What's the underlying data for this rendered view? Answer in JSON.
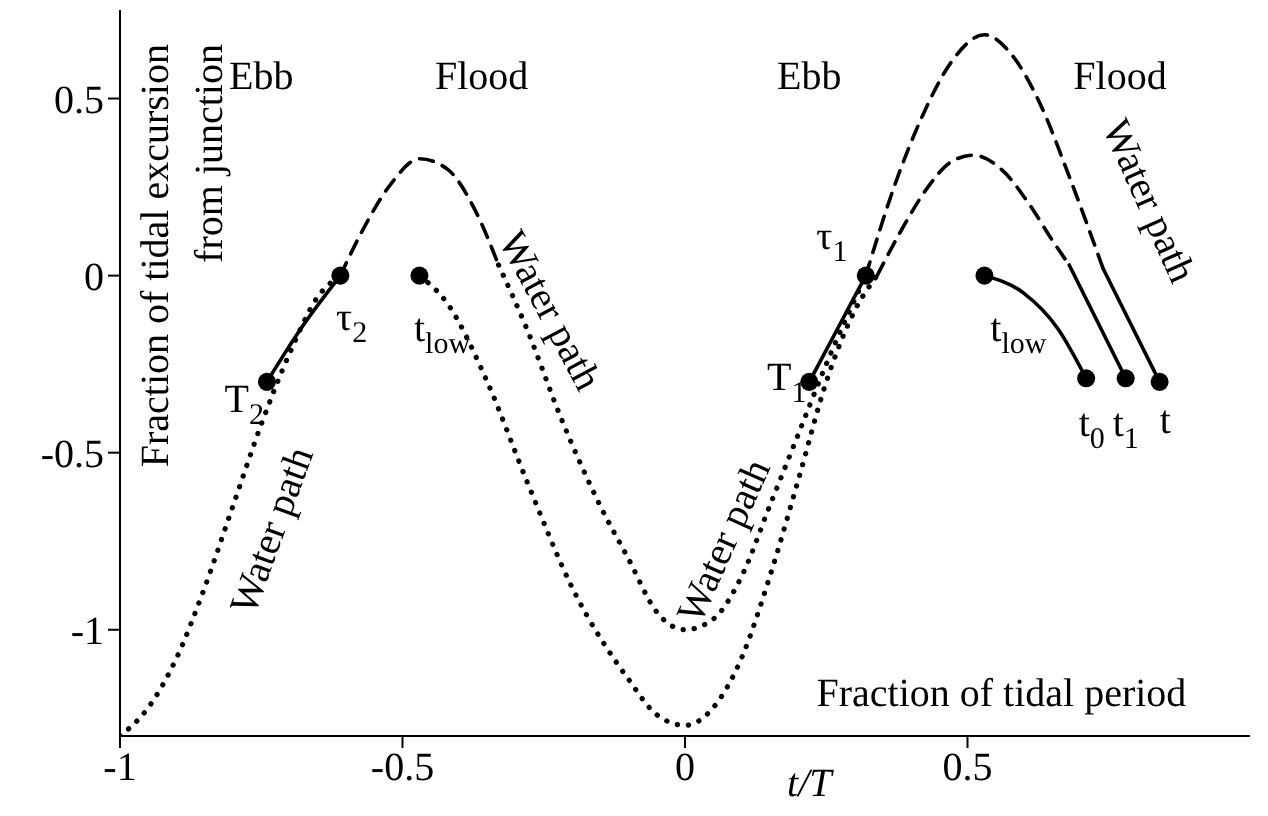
{
  "chart_data": {
    "type": "line",
    "xlabel": "t/T",
    "ylabel": "Fraction of tidal excursion from junction",
    "xlim": [
      -1,
      1
    ],
    "ylim": [
      -1.3,
      0.75
    ],
    "xticks": [
      -1,
      -0.5,
      0,
      0.5
    ],
    "yticks": [
      -1,
      -0.5,
      0,
      0.5
    ],
    "grid": false,
    "legend": false,
    "series": [
      {
        "type": "line",
        "line_style": "dotted",
        "color": "#000000",
        "x": [
          -1,
          -0.95,
          -0.9,
          -0.85,
          -0.8,
          -0.75,
          -0.7,
          -0.65,
          -0.61
        ],
        "values": [
          -1.3,
          -1.22,
          -1.08,
          -0.88,
          -0.65,
          -0.42,
          -0.22,
          -0.06,
          0
        ]
      },
      {
        "type": "line",
        "line_style": "dashed",
        "color": "#000000",
        "x": [
          -0.61,
          -0.57,
          -0.52,
          -0.47,
          -0.42,
          -0.37,
          -0.33
        ],
        "values": [
          0,
          0.13,
          0.26,
          0.33,
          0.3,
          0.18,
          0.03
        ]
      },
      {
        "type": "line",
        "line_style": "dotted",
        "color": "#000000",
        "x": [
          -0.33,
          -0.28,
          -0.22,
          -0.15,
          -0.1,
          -0.05,
          0,
          0.05,
          0.1,
          0.15,
          0.2,
          0.25,
          0.32
        ],
        "values": [
          0.03,
          -0.15,
          -0.4,
          -0.65,
          -0.8,
          -0.95,
          -1,
          -0.97,
          -0.85,
          -0.65,
          -0.45,
          -0.25,
          0
        ]
      },
      {
        "type": "line",
        "line_style": "dashed",
        "color": "#000000",
        "x": [
          0.32,
          0.37,
          0.42,
          0.47,
          0.53,
          0.58,
          0.63,
          0.68,
          0.74
        ],
        "values": [
          0,
          0.25,
          0.45,
          0.6,
          0.68,
          0.62,
          0.48,
          0.28,
          0.02
        ]
      },
      {
        "type": "line",
        "line_style": "dotted",
        "color": "#000000",
        "x": [
          -0.47,
          -0.42,
          -0.35,
          -0.28,
          -0.2,
          -0.1,
          -0.05,
          0,
          0.05,
          0.1,
          0.15,
          0.2,
          0.25,
          0.3,
          0.34
        ],
        "values": [
          0,
          -0.08,
          -0.3,
          -0.58,
          -0.88,
          -1.14,
          -1.24,
          -1.27,
          -1.22,
          -1.08,
          -0.85,
          -0.58,
          -0.3,
          -0.1,
          0
        ]
      },
      {
        "type": "line",
        "line_style": "dashed",
        "color": "#000000",
        "x": [
          0.34,
          0.38,
          0.43,
          0.47,
          0.51,
          0.56,
          0.61,
          0.65,
          0.68
        ],
        "values": [
          0,
          0.12,
          0.25,
          0.32,
          0.34,
          0.3,
          0.2,
          0.1,
          0.03
        ]
      },
      {
        "type": "line",
        "line_style": "solid",
        "color": "#000000",
        "x": [
          -0.74,
          -0.68,
          -0.61
        ],
        "values": [
          -0.3,
          -0.15,
          0
        ]
      },
      {
        "type": "line",
        "line_style": "solid",
        "color": "#000000",
        "x": [
          0.22,
          0.27,
          0.32
        ],
        "values": [
          -0.3,
          -0.15,
          0
        ]
      },
      {
        "type": "line",
        "line_style": "solid",
        "color": "#000000",
        "x": [
          0.53,
          0.6,
          0.66,
          0.71
        ],
        "values": [
          0,
          -0.05,
          -0.15,
          -0.29
        ]
      },
      {
        "type": "line",
        "line_style": "solid",
        "color": "#000000",
        "x": [
          0.68,
          0.78
        ],
        "values": [
          0.03,
          -0.29
        ]
      },
      {
        "type": "line",
        "line_style": "solid",
        "color": "#000000",
        "x": [
          0.74,
          0.84
        ],
        "values": [
          0.02,
          -0.3
        ]
      },
      {
        "type": "scatter",
        "marker": "circle",
        "color": "#000000",
        "x": [
          -0.74,
          -0.61,
          -0.47,
          0.22,
          0.32,
          0.53,
          0.71,
          0.78,
          0.84
        ],
        "values": [
          -0.3,
          0,
          0,
          -0.3,
          0,
          0,
          -0.29,
          -0.29,
          -0.3
        ]
      }
    ],
    "annotations": [
      "Ebb",
      "Flood",
      "Ebb",
      "Flood",
      "Water path",
      "Water path",
      "Water path",
      "Water path",
      "Fraction of tidal period",
      "T$_{2}$",
      "τ$_{2}$",
      "t$_{low}$",
      "T$_{1}$",
      "τ$_{1}$",
      "t$_{low}$",
      "t$_{0}$",
      "t$_{1}$",
      "t"
    ]
  }
}
